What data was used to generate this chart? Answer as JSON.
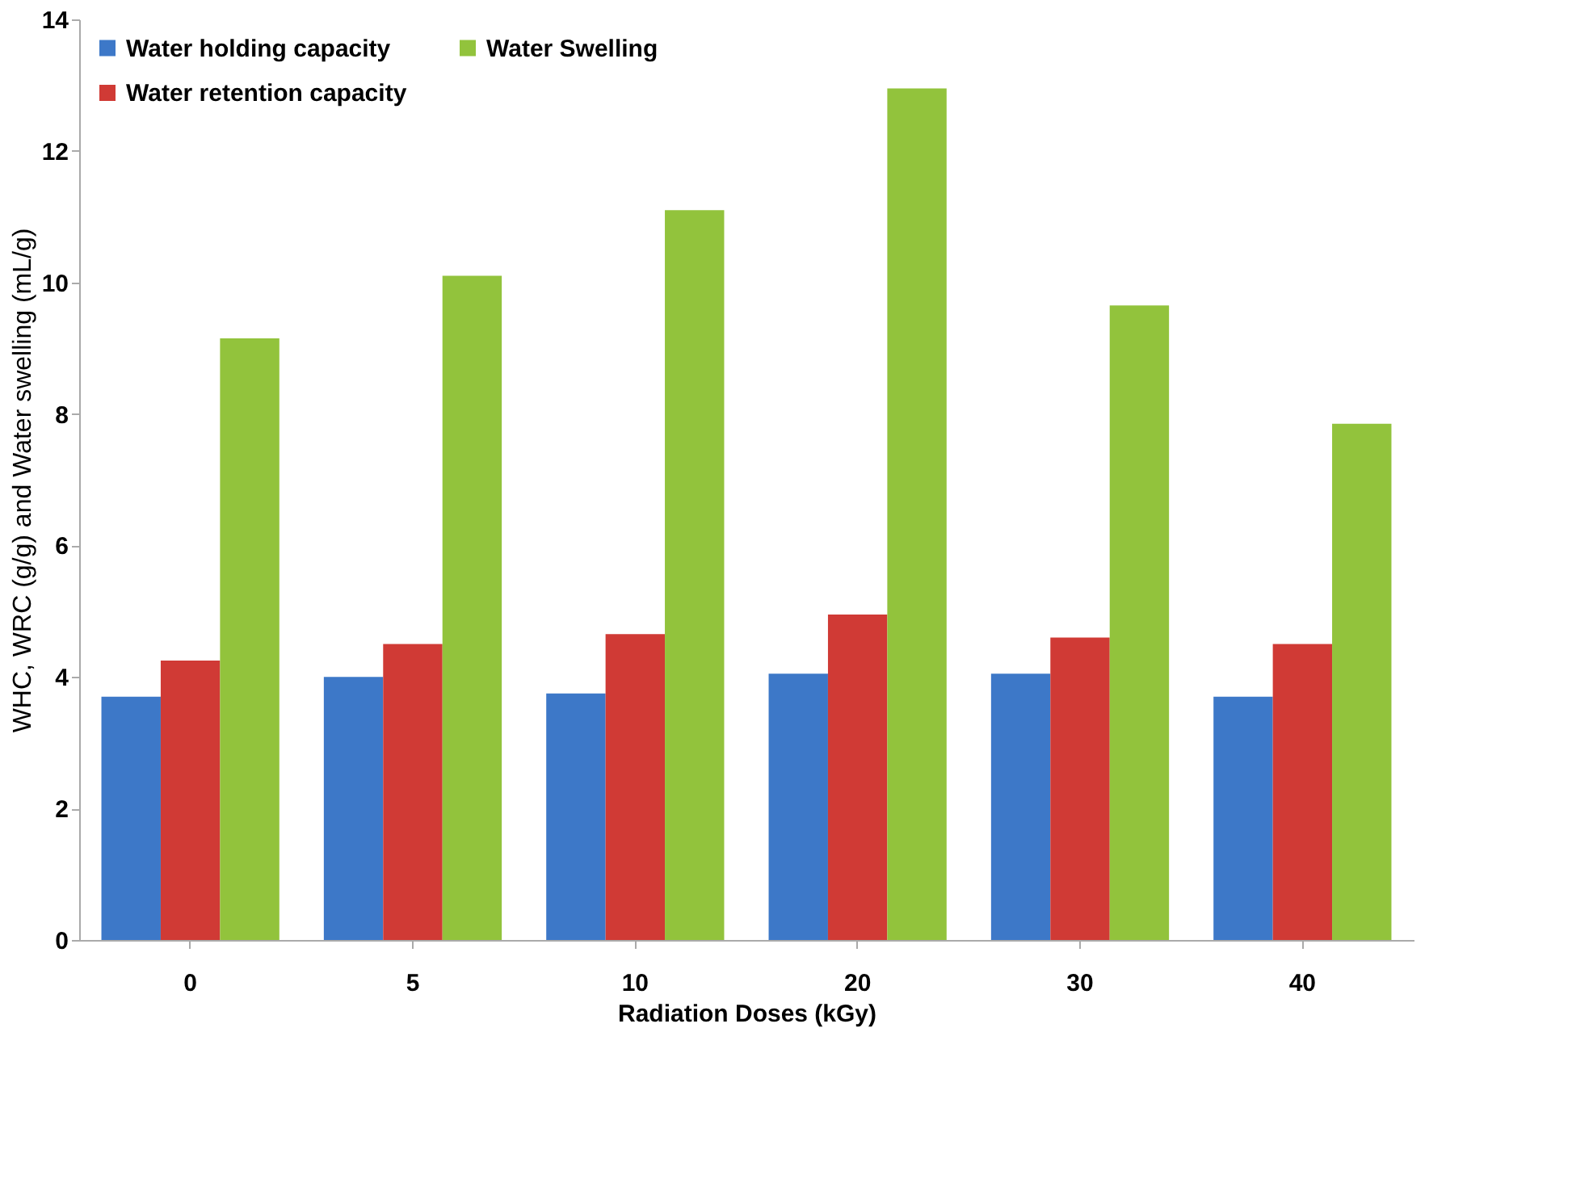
{
  "chart_data": {
    "type": "bar",
    "xlabel": "Radiation Doses (kGy)",
    "ylabel": "WHC, WRC (g/g) and Water swelling (mL/g)",
    "categories": [
      "0",
      "5",
      "10",
      "20",
      "30",
      "40"
    ],
    "series": [
      {
        "name": "Water holding capacity",
        "color": "#3d78c8",
        "values": [
          3.7,
          4.0,
          3.75,
          4.05,
          4.05,
          3.7
        ]
      },
      {
        "name": "Water retention capacity",
        "color": "#d03a35",
        "values": [
          4.25,
          4.5,
          4.65,
          4.95,
          4.6,
          4.5
        ]
      },
      {
        "name": "Water Swelling",
        "color": "#92c33c",
        "values": [
          9.15,
          10.1,
          11.1,
          12.95,
          9.65,
          7.85
        ]
      }
    ],
    "ylim": [
      0,
      14
    ],
    "yticks": [
      0,
      2,
      4,
      6,
      8,
      10,
      12,
      14
    ],
    "grid": false,
    "legend": "top left"
  }
}
